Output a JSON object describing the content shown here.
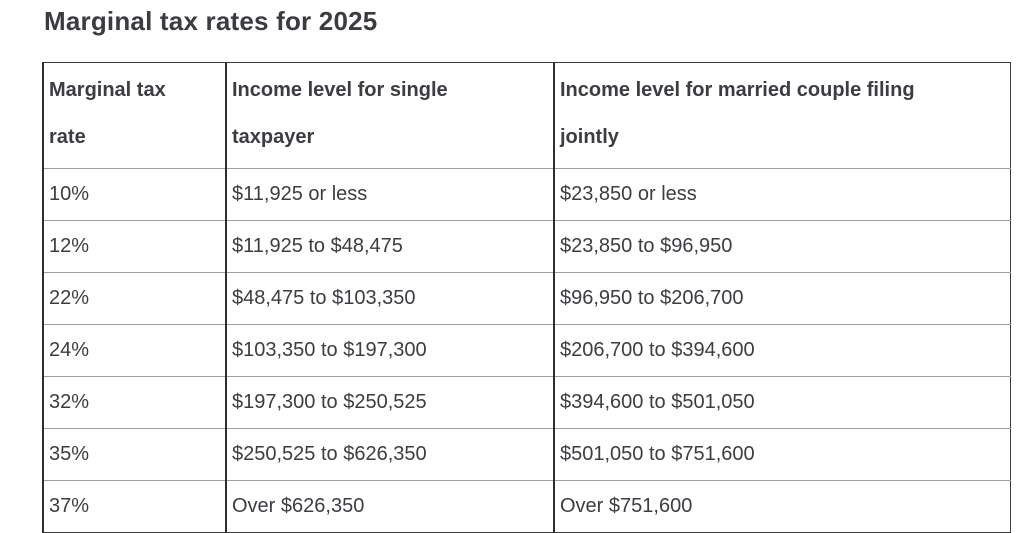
{
  "page": {
    "title": "Marginal tax rates for 2025"
  },
  "table": {
    "columns": [
      {
        "label": "Marginal tax rate",
        "lines": [
          "Marginal tax",
          "rate"
        ]
      },
      {
        "label": "Income level for single taxpayer",
        "lines": [
          "Income level for single",
          "taxpayer"
        ]
      },
      {
        "label": "Income level for married couple filing jointly",
        "lines": [
          "Income level for married couple filing",
          "jointly"
        ]
      }
    ],
    "rows": [
      [
        "10%",
        "$11,925 or less",
        "$23,850 or less"
      ],
      [
        "12%",
        "$11,925 to $48,475",
        "$23,850 to $96,950"
      ],
      [
        "22%",
        "$48,475 to $103,350",
        "$96,950 to $206,700"
      ],
      [
        "24%",
        "$103,350 to $197,300",
        "$206,700 to $394,600"
      ],
      [
        "32%",
        "$197,300 to $250,525",
        "$394,600 to $501,050"
      ],
      [
        "35%",
        "$250,525 to $626,350",
        "$501,050 to $751,600"
      ],
      [
        "37%",
        "Over $626,350",
        "Over $751,600"
      ]
    ]
  },
  "colors": {
    "text": "#3c3c43",
    "title_text": "#3b3b42",
    "vertical_border": "#2f2f2f",
    "horizontal_border": "#9e9e9e",
    "outer_border": "#3a3a3a",
    "background": "#ffffff"
  }
}
